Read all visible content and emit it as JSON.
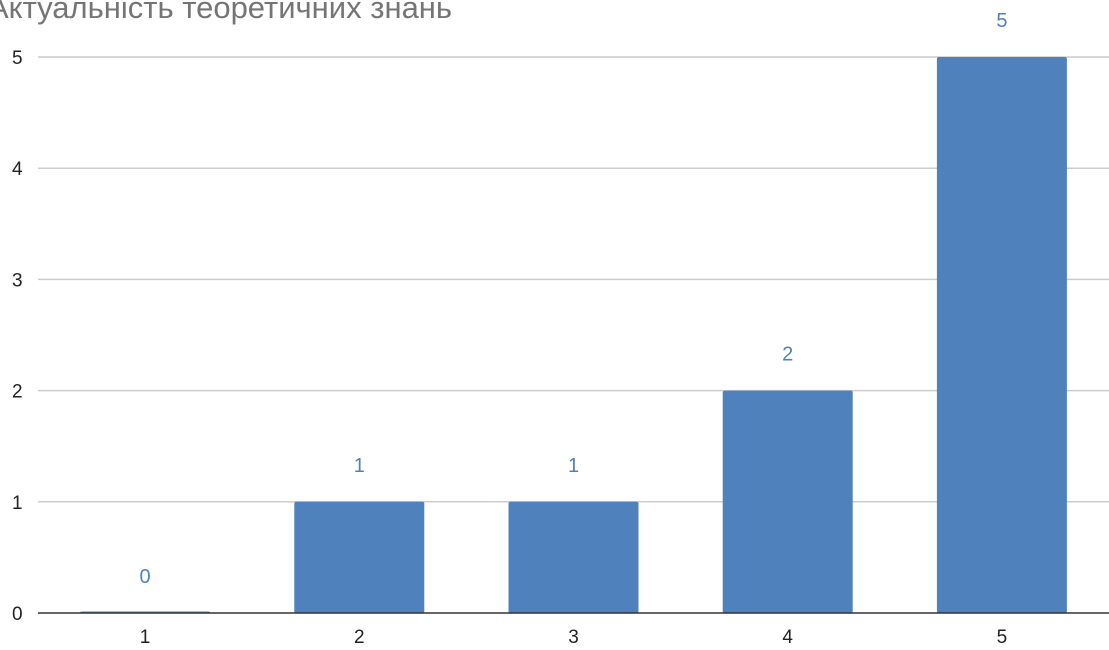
{
  "chart_data": {
    "type": "bar",
    "title": "Актуальність теоретичних знань",
    "xlabel": "",
    "ylabel": "",
    "categories": [
      "1",
      "2",
      "3",
      "4",
      "5"
    ],
    "values": [
      0,
      1,
      1,
      2,
      5
    ],
    "ylim": [
      0,
      5
    ],
    "yticks": [
      "0",
      "1",
      "2",
      "3",
      "4",
      "5"
    ],
    "data_labels": [
      "0",
      "1",
      "1",
      "2",
      "5"
    ],
    "grid": true,
    "legend": "none",
    "colors": {
      "bar": "#4f81bd",
      "data_label": "#4f81bd",
      "grid": "#cccccc",
      "axis": "#333333"
    }
  }
}
